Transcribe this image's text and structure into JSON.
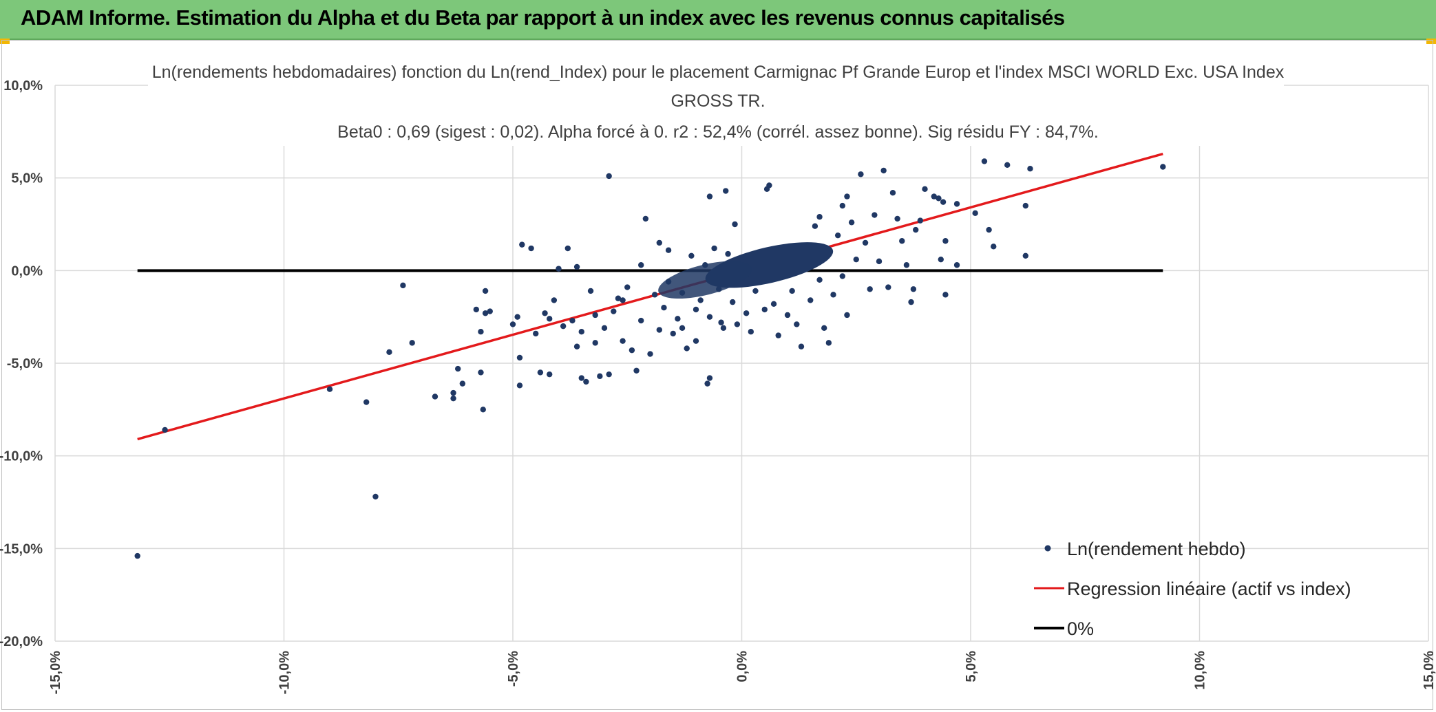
{
  "header": {
    "title": "ADAM Informe. Estimation du Alpha et du Beta par rapport à un index avec les revenus connus capitalisés",
    "background": "#7dc77a"
  },
  "chart_data": {
    "type": "scatter",
    "title_lines": [
      "Ln(rendements hebdomadaires) fonction du Ln(rend_Index) pour le placement Carmignac Pf Grande Europ et l'index MSCI WORLD Exc. USA Index",
      "GROSS TR.",
      "Beta0 : 0,69 (sigest : 0,02). Alpha forcé à 0. r2 : 52,4% (corrél. assez bonne). Sig résidu FY : 84,7%."
    ],
    "xlim": [
      -15,
      15
    ],
    "ylim": [
      -20,
      10
    ],
    "x_ticks": [
      -15,
      -10,
      -5,
      0,
      5,
      10,
      15
    ],
    "y_ticks": [
      10,
      5,
      0,
      -5,
      -10,
      -15,
      -20
    ],
    "x_tick_labels": [
      "-15,0%",
      "-10,0%",
      "-5,0%",
      "0,0%",
      "5,0%",
      "10,0%",
      "15,0%"
    ],
    "y_tick_labels": [
      "10,0%",
      "5,0%",
      "0,0%",
      "-5,0%",
      "-10,0%",
      "-15,0%",
      "-20,0%"
    ],
    "grid": true,
    "legend_position": "bottom-right",
    "series": [
      {
        "name": "Ln(rendement hebdo)",
        "kind": "scatter",
        "color": "#203864",
        "points": [
          [
            -13.2,
            -15.4
          ],
          [
            -12.6,
            -8.6
          ],
          [
            -9.0,
            -6.4
          ],
          [
            -8.2,
            -7.1
          ],
          [
            -8.0,
            -12.2
          ],
          [
            -7.7,
            -4.4
          ],
          [
            -7.4,
            -0.8
          ],
          [
            -7.2,
            -3.9
          ],
          [
            -6.7,
            -6.8
          ],
          [
            -6.3,
            -6.9
          ],
          [
            -6.3,
            -6.6
          ],
          [
            -6.2,
            -5.3
          ],
          [
            -6.1,
            -6.1
          ],
          [
            -5.8,
            -2.1
          ],
          [
            -5.7,
            -5.5
          ],
          [
            -5.7,
            -3.3
          ],
          [
            -5.6,
            -2.3
          ],
          [
            -5.6,
            -1.1
          ],
          [
            -5.65,
            -7.5
          ],
          [
            -5.5,
            -2.2
          ],
          [
            -5.0,
            -2.9
          ],
          [
            -4.9,
            -2.5
          ],
          [
            -4.85,
            -4.7
          ],
          [
            -4.8,
            1.4
          ],
          [
            -4.85,
            -6.2
          ],
          [
            -4.5,
            -3.4
          ],
          [
            -4.4,
            -5.5
          ],
          [
            -4.3,
            -2.3
          ],
          [
            -4.2,
            -5.6
          ],
          [
            -4.1,
            -1.6
          ],
          [
            -4.0,
            0.1
          ],
          [
            -3.9,
            -3.0
          ],
          [
            -3.8,
            1.2
          ],
          [
            -3.7,
            -2.7
          ],
          [
            -3.6,
            -4.1
          ],
          [
            -3.5,
            -3.3
          ],
          [
            -3.5,
            -5.8
          ],
          [
            -3.4,
            -6.0
          ],
          [
            -3.3,
            -1.1
          ],
          [
            -3.2,
            -2.4
          ],
          [
            -3.1,
            -5.7
          ],
          [
            -3.0,
            -3.1
          ],
          [
            -2.9,
            5.1
          ],
          [
            -2.9,
            -5.6
          ],
          [
            -2.8,
            -2.2
          ],
          [
            -2.7,
            -1.5
          ],
          [
            -2.6,
            -3.8
          ],
          [
            -2.5,
            -0.9
          ],
          [
            -2.4,
            -4.3
          ],
          [
            -2.3,
            -5.4
          ],
          [
            -2.2,
            -2.7
          ],
          [
            -2.1,
            2.8
          ],
          [
            -2.0,
            -4.5
          ],
          [
            -1.9,
            -1.3
          ],
          [
            -1.8,
            -3.2
          ],
          [
            -1.8,
            1.5
          ],
          [
            -1.7,
            -2.0
          ],
          [
            -1.6,
            -0.6
          ],
          [
            -1.5,
            -3.4
          ],
          [
            -1.4,
            -2.6
          ],
          [
            -1.3,
            -1.2
          ],
          [
            -1.2,
            -4.2
          ],
          [
            -1.1,
            0.8
          ],
          [
            -1.0,
            -3.8
          ],
          [
            -1.0,
            -2.1
          ],
          [
            -0.9,
            -1.6
          ],
          [
            -0.8,
            0.3
          ],
          [
            -0.75,
            -6.1
          ],
          [
            -0.7,
            -5.8
          ],
          [
            -0.7,
            -2.5
          ],
          [
            -0.6,
            1.2
          ],
          [
            -0.5,
            -1.0
          ],
          [
            -0.45,
            -2.8
          ],
          [
            -0.4,
            -3.1
          ],
          [
            -0.3,
            0.9
          ],
          [
            -0.2,
            -1.7
          ],
          [
            -0.15,
            2.5
          ],
          [
            -0.1,
            -2.9
          ],
          [
            -0.05,
            0.5
          ],
          [
            0.1,
            -2.3
          ],
          [
            0.2,
            -3.3
          ],
          [
            0.3,
            -1.1
          ],
          [
            0.4,
            0.9
          ],
          [
            0.5,
            -2.1
          ],
          [
            0.6,
            4.6
          ],
          [
            0.7,
            -1.8
          ],
          [
            0.8,
            -3.5
          ],
          [
            0.9,
            0.4
          ],
          [
            1.0,
            -2.4
          ],
          [
            1.1,
            -1.1
          ],
          [
            1.2,
            -2.9
          ],
          [
            1.3,
            -4.1
          ],
          [
            1.4,
            0.8
          ],
          [
            1.5,
            -1.6
          ],
          [
            1.6,
            2.4
          ],
          [
            1.7,
            -0.5
          ],
          [
            1.8,
            -3.1
          ],
          [
            1.9,
            -3.9
          ],
          [
            2.0,
            -1.3
          ],
          [
            2.1,
            1.9
          ],
          [
            2.2,
            -0.3
          ],
          [
            2.3,
            -2.4
          ],
          [
            2.4,
            2.6
          ],
          [
            2.5,
            0.6
          ],
          [
            2.6,
            5.2
          ],
          [
            2.7,
            1.5
          ],
          [
            2.8,
            -1.0
          ],
          [
            2.9,
            3.0
          ],
          [
            3.0,
            0.5
          ],
          [
            3.1,
            5.4
          ],
          [
            3.2,
            -0.9
          ],
          [
            3.3,
            4.2
          ],
          [
            3.4,
            2.8
          ],
          [
            3.5,
            1.6
          ],
          [
            3.6,
            0.3
          ],
          [
            3.7,
            -1.7
          ],
          [
            3.75,
            -1.0
          ],
          [
            3.8,
            2.2
          ],
          [
            3.9,
            2.7
          ],
          [
            4.0,
            4.4
          ],
          [
            4.2,
            4.0
          ],
          [
            4.3,
            3.9
          ],
          [
            4.35,
            0.6
          ],
          [
            4.4,
            3.7
          ],
          [
            4.45,
            1.6
          ],
          [
            4.45,
            -1.3
          ],
          [
            4.7,
            0.3
          ],
          [
            5.1,
            3.1
          ],
          [
            5.3,
            5.9
          ],
          [
            5.4,
            2.2
          ],
          [
            5.5,
            1.3
          ],
          [
            5.8,
            5.7
          ],
          [
            6.2,
            3.5
          ],
          [
            6.3,
            5.5
          ],
          [
            6.2,
            0.8
          ],
          [
            9.2,
            5.6
          ],
          [
            -0.35,
            4.3
          ],
          [
            0.55,
            4.4
          ],
          [
            -0.7,
            4.0
          ],
          [
            -4.6,
            1.2
          ],
          [
            -3.6,
            0.2
          ],
          [
            2.3,
            4.0
          ],
          [
            4.7,
            3.6
          ],
          [
            -2.2,
            0.3
          ],
          [
            -1.6,
            1.1
          ],
          [
            -2.6,
            -1.6
          ],
          [
            -3.2,
            -3.9
          ],
          [
            -1.3,
            -3.1
          ],
          [
            -4.2,
            -2.6
          ],
          [
            1.7,
            2.9
          ],
          [
            2.2,
            3.5
          ]
        ]
      },
      {
        "name": "Regression linéaire (actif vs index)",
        "kind": "line",
        "color": "#e31a1c",
        "points": [
          [
            -13.2,
            -9.1
          ],
          [
            9.2,
            6.3
          ]
        ]
      },
      {
        "name": "0%",
        "kind": "line",
        "color": "#000000",
        "points": [
          [
            -13.2,
            0.0
          ],
          [
            9.2,
            0.0
          ]
        ]
      }
    ]
  },
  "colors": {
    "grid": "#d9d9d9",
    "scatter": "#203864",
    "regression": "#e31a1c",
    "zero": "#000000"
  }
}
